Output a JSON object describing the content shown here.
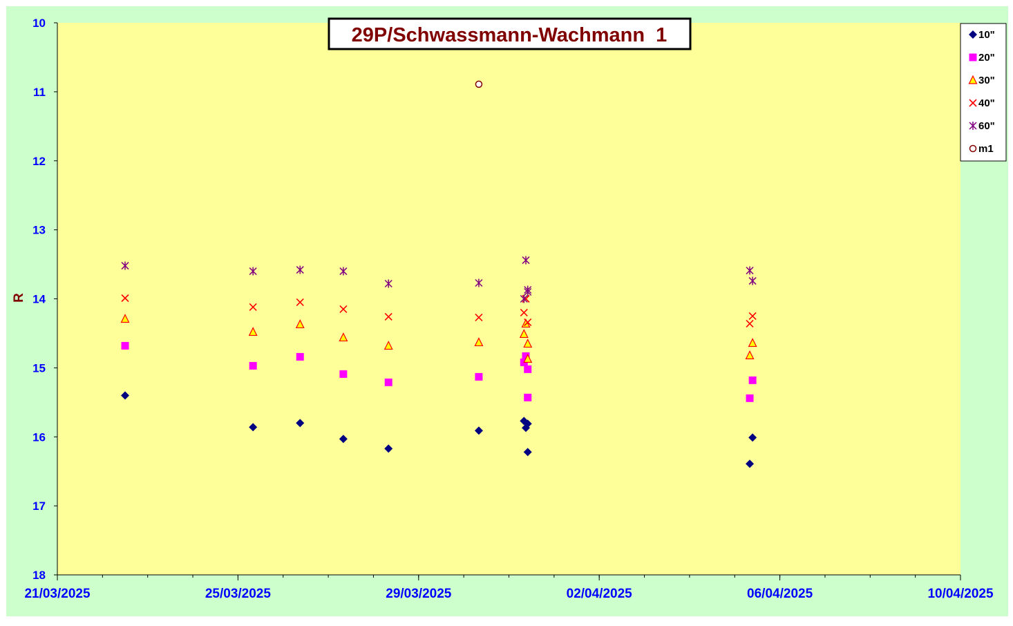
{
  "chart_data": {
    "type": "scatter",
    "title": "29P/Schwassmann-Wachmann  1",
    "xlabel": "",
    "ylabel": "R",
    "x_ticks": [
      "21/03/2025",
      "25/03/2025",
      "29/03/2025",
      "02/04/2025",
      "06/04/2025",
      "10/04/2025"
    ],
    "xlim": [
      "2025-03-21",
      "2025-04-10"
    ],
    "y_ticks": [
      "10",
      "11",
      "12",
      "13",
      "14",
      "15",
      "16",
      "17",
      "18"
    ],
    "ylim": [
      10,
      18
    ],
    "y_inverted": true,
    "grid": false,
    "legend_position": "top-right",
    "colors": {
      "outer_background": "#ccffcc",
      "plot_background": "#ffff99",
      "title_color": "#800000",
      "tick_label_color": "#0000ff",
      "ylabel_color": "#800000"
    },
    "series": [
      {
        "name": "10\"",
        "marker": "diamond",
        "color": "#000080",
        "points": [
          {
            "x": "2025-03-22 12:00",
            "y": 15.4
          },
          {
            "x": "2025-03-25 08:00",
            "y": 15.86
          },
          {
            "x": "2025-03-26 09:00",
            "y": 15.8
          },
          {
            "x": "2025-03-27 08:00",
            "y": 16.03
          },
          {
            "x": "2025-03-28 08:00",
            "y": 16.17
          },
          {
            "x": "2025-03-30 08:00",
            "y": 15.91
          },
          {
            "x": "2025-03-31 08:00",
            "y": 15.77
          },
          {
            "x": "2025-03-31 09:00",
            "y": 15.87
          },
          {
            "x": "2025-03-31 10:00",
            "y": 15.81
          },
          {
            "x": "2025-03-31 10:00",
            "y": 16.22
          },
          {
            "x": "2025-04-05 08:00",
            "y": 16.39
          },
          {
            "x": "2025-04-05 09:30",
            "y": 16.01
          }
        ]
      },
      {
        "name": "20\"",
        "marker": "square",
        "color": "#ff00ff",
        "points": [
          {
            "x": "2025-03-22 12:00",
            "y": 14.68
          },
          {
            "x": "2025-03-25 08:00",
            "y": 14.97
          },
          {
            "x": "2025-03-26 09:00",
            "y": 14.84
          },
          {
            "x": "2025-03-27 08:00",
            "y": 15.09
          },
          {
            "x": "2025-03-28 08:00",
            "y": 15.21
          },
          {
            "x": "2025-03-30 08:00",
            "y": 15.13
          },
          {
            "x": "2025-03-31 08:00",
            "y": 14.92
          },
          {
            "x": "2025-03-31 09:00",
            "y": 14.83
          },
          {
            "x": "2025-03-31 10:00",
            "y": 15.02
          },
          {
            "x": "2025-03-31 10:00",
            "y": 15.43
          },
          {
            "x": "2025-04-05 08:00",
            "y": 15.44
          },
          {
            "x": "2025-04-05 09:30",
            "y": 15.18
          }
        ]
      },
      {
        "name": "30\"",
        "marker": "triangle",
        "color": "#ff0000",
        "fill": "#ffff00",
        "points": [
          {
            "x": "2025-03-22 12:00",
            "y": 14.29
          },
          {
            "x": "2025-03-25 08:00",
            "y": 14.48
          },
          {
            "x": "2025-03-26 09:00",
            "y": 14.37
          },
          {
            "x": "2025-03-27 08:00",
            "y": 14.56
          },
          {
            "x": "2025-03-28 08:00",
            "y": 14.68
          },
          {
            "x": "2025-03-30 08:00",
            "y": 14.63
          },
          {
            "x": "2025-03-31 08:00",
            "y": 14.51
          },
          {
            "x": "2025-03-31 09:00",
            "y": 14.36
          },
          {
            "x": "2025-03-31 10:00",
            "y": 14.65
          },
          {
            "x": "2025-03-31 10:00",
            "y": 14.87
          },
          {
            "x": "2025-04-05 08:00",
            "y": 14.82
          },
          {
            "x": "2025-04-05 09:30",
            "y": 14.64
          }
        ]
      },
      {
        "name": "40\"",
        "marker": "x",
        "color": "#ff0000",
        "points": [
          {
            "x": "2025-03-22 12:00",
            "y": 13.99
          },
          {
            "x": "2025-03-25 08:00",
            "y": 14.12
          },
          {
            "x": "2025-03-26 09:00",
            "y": 14.05
          },
          {
            "x": "2025-03-27 08:00",
            "y": 14.15
          },
          {
            "x": "2025-03-28 08:00",
            "y": 14.26
          },
          {
            "x": "2025-03-30 08:00",
            "y": 14.27
          },
          {
            "x": "2025-03-31 08:00",
            "y": 14.2
          },
          {
            "x": "2025-03-31 09:00",
            "y": 14.0
          },
          {
            "x": "2025-03-31 10:00",
            "y": 14.34
          },
          {
            "x": "2025-04-05 08:00",
            "y": 14.36
          },
          {
            "x": "2025-04-05 09:30",
            "y": 14.25
          }
        ]
      },
      {
        "name": "60\"",
        "marker": "star",
        "color": "#800080",
        "points": [
          {
            "x": "2025-03-22 12:00",
            "y": 13.52
          },
          {
            "x": "2025-03-25 08:00",
            "y": 13.6
          },
          {
            "x": "2025-03-26 09:00",
            "y": 13.58
          },
          {
            "x": "2025-03-27 08:00",
            "y": 13.6
          },
          {
            "x": "2025-03-28 08:00",
            "y": 13.78
          },
          {
            "x": "2025-03-30 08:00",
            "y": 13.77
          },
          {
            "x": "2025-03-31 08:00",
            "y": 14.0
          },
          {
            "x": "2025-03-31 09:00",
            "y": 13.44
          },
          {
            "x": "2025-03-31 10:00",
            "y": 13.87
          },
          {
            "x": "2025-03-31 10:00",
            "y": 13.9
          },
          {
            "x": "2025-04-05 08:00",
            "y": 13.59
          },
          {
            "x": "2025-04-05 09:30",
            "y": 13.74
          }
        ]
      },
      {
        "name": "m1",
        "marker": "circle",
        "color": "#800000",
        "fill": "#ffffff",
        "points": [
          {
            "x": "2025-03-30 08:00",
            "y": 10.89
          }
        ]
      }
    ]
  }
}
